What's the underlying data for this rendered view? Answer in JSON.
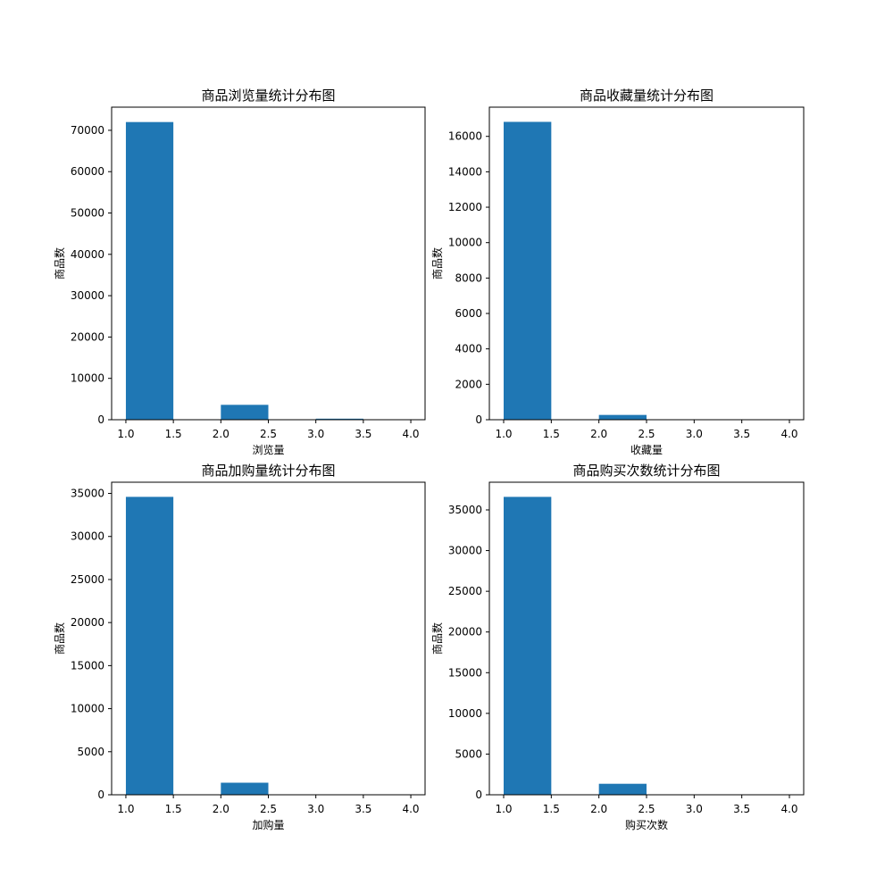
{
  "chart_data": [
    {
      "type": "bar",
      "title": "商品浏览量统计分布图",
      "xlabel": "浏览量",
      "ylabel": "商品数",
      "xlim": [
        0.85,
        4.15
      ],
      "ylim": [
        0,
        75600
      ],
      "xticks": [
        1.0,
        1.5,
        2.0,
        2.5,
        3.0,
        3.5,
        4.0
      ],
      "xtick_labels": [
        "1.0",
        "1.5",
        "2.0",
        "2.5",
        "3.0",
        "3.5",
        "4.0"
      ],
      "yticks": [
        0,
        10000,
        20000,
        30000,
        40000,
        50000,
        60000,
        70000
      ],
      "ytick_labels": [
        "0",
        "10000",
        "20000",
        "30000",
        "40000",
        "50000",
        "60000",
        "70000"
      ],
      "bins": [
        [
          1.0,
          1.5
        ],
        [
          1.5,
          2.0
        ],
        [
          2.0,
          2.5
        ],
        [
          2.5,
          3.0
        ],
        [
          3.0,
          3.5
        ],
        [
          3.5,
          4.0
        ]
      ],
      "values": [
        72000,
        0,
        3600,
        0,
        250,
        30
      ],
      "color": "#1f77b4",
      "grid": false
    },
    {
      "type": "bar",
      "title": "商品收藏量统计分布图",
      "xlabel": "收藏量",
      "ylabel": "商品数",
      "xlim": [
        0.85,
        4.15
      ],
      "ylim": [
        0,
        17650
      ],
      "xticks": [
        1.0,
        1.5,
        2.0,
        2.5,
        3.0,
        3.5,
        4.0
      ],
      "xtick_labels": [
        "1.0",
        "1.5",
        "2.0",
        "2.5",
        "3.0",
        "3.5",
        "4.0"
      ],
      "yticks": [
        0,
        2000,
        4000,
        6000,
        8000,
        10000,
        12000,
        14000,
        16000
      ],
      "ytick_labels": [
        "0",
        "2000",
        "4000",
        "6000",
        "8000",
        "10000",
        "12000",
        "14000",
        "16000"
      ],
      "bins": [
        [
          1.0,
          1.5
        ],
        [
          1.5,
          2.0
        ],
        [
          2.0,
          2.5
        ],
        [
          2.5,
          3.0
        ],
        [
          3.0,
          3.5
        ],
        [
          3.5,
          4.0
        ]
      ],
      "values": [
        16820,
        0,
        270,
        0,
        10,
        5
      ],
      "color": "#1f77b4",
      "grid": false
    },
    {
      "type": "bar",
      "title": "商品加购量统计分布图",
      "xlabel": "加购量",
      "ylabel": "商品数",
      "xlim": [
        0.85,
        4.15
      ],
      "ylim": [
        0,
        36300
      ],
      "xticks": [
        1.0,
        1.5,
        2.0,
        2.5,
        3.0,
        3.5,
        4.0
      ],
      "xtick_labels": [
        "1.0",
        "1.5",
        "2.0",
        "2.5",
        "3.0",
        "3.5",
        "4.0"
      ],
      "yticks": [
        0,
        5000,
        10000,
        15000,
        20000,
        25000,
        30000,
        35000
      ],
      "ytick_labels": [
        "0",
        "5000",
        "10000",
        "15000",
        "20000",
        "25000",
        "30000",
        "35000"
      ],
      "bins": [
        [
          1.0,
          1.5
        ],
        [
          1.5,
          2.0
        ],
        [
          2.0,
          2.5
        ],
        [
          2.5,
          3.0
        ],
        [
          3.0,
          3.5
        ],
        [
          3.5,
          4.0
        ]
      ],
      "values": [
        34600,
        0,
        1400,
        0,
        40,
        10
      ],
      "color": "#1f77b4",
      "grid": false
    },
    {
      "type": "bar",
      "title": "商品购买次数统计分布图",
      "xlabel": "购买次数",
      "ylabel": "商品数",
      "xlim": [
        0.85,
        4.15
      ],
      "ylim": [
        0,
        38400
      ],
      "xticks": [
        1.0,
        1.5,
        2.0,
        2.5,
        3.0,
        3.5,
        4.0
      ],
      "xtick_labels": [
        "1.0",
        "1.5",
        "2.0",
        "2.5",
        "3.0",
        "3.5",
        "4.0"
      ],
      "yticks": [
        0,
        5000,
        10000,
        15000,
        20000,
        25000,
        30000,
        35000
      ],
      "ytick_labels": [
        "0",
        "5000",
        "10000",
        "15000",
        "20000",
        "25000",
        "30000",
        "35000"
      ],
      "bins": [
        [
          1.0,
          1.5
        ],
        [
          1.5,
          2.0
        ],
        [
          2.0,
          2.5
        ],
        [
          2.5,
          3.0
        ],
        [
          3.0,
          3.5
        ],
        [
          3.5,
          4.0
        ]
      ],
      "values": [
        36600,
        0,
        1350,
        0,
        30,
        10
      ],
      "color": "#1f77b4",
      "grid": false
    }
  ]
}
